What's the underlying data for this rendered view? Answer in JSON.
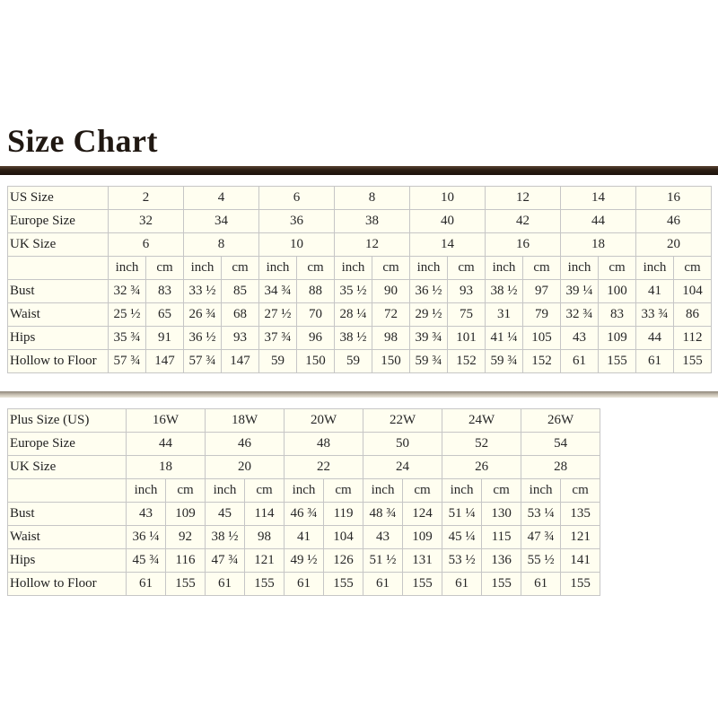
{
  "page": {
    "title": "Size Chart"
  },
  "colors": {
    "title_text": "#201812",
    "title_bar_dark_brown": "#2e2015",
    "table_divider_taupe": "#c9c2b4",
    "cell_background_ivory": "#fffef0",
    "cell_border": "#c6c6c6",
    "text": "#262626"
  },
  "chart_data": [
    {
      "type": "table",
      "name": "standard-size-chart",
      "title": "Standard US sizes",
      "unit_header": [
        "inch",
        "cm"
      ],
      "size_rows": [
        {
          "label": "US Size",
          "values": [
            "2",
            "4",
            "6",
            "8",
            "10",
            "12",
            "14",
            "16"
          ]
        },
        {
          "label": "Europe Size",
          "values": [
            "32",
            "34",
            "36",
            "38",
            "40",
            "42",
            "44",
            "46"
          ]
        },
        {
          "label": "UK Size",
          "values": [
            "6",
            "8",
            "10",
            "12",
            "14",
            "16",
            "18",
            "20"
          ]
        }
      ],
      "measure_rows": [
        {
          "label": "Bust",
          "values": [
            "32 ¾",
            "83",
            "33 ½",
            "85",
            "34 ¾",
            "88",
            "35 ½",
            "90",
            "36 ½",
            "93",
            "38 ½",
            "97",
            "39 ¼",
            "100",
            "41",
            "104"
          ]
        },
        {
          "label": "Waist",
          "values": [
            "25 ½",
            "65",
            "26 ¾",
            "68",
            "27 ½",
            "70",
            "28 ¼",
            "72",
            "29 ½",
            "75",
            "31",
            "79",
            "32 ¾",
            "83",
            "33 ¾",
            "86"
          ]
        },
        {
          "label": "Hips",
          "values": [
            "35 ¾",
            "91",
            "36 ½",
            "93",
            "37 ¾",
            "96",
            "38 ½",
            "98",
            "39 ¾",
            "101",
            "41 ¼",
            "105",
            "43",
            "109",
            "44",
            "112"
          ]
        },
        {
          "label": "Hollow to Floor",
          "values": [
            "57 ¾",
            "147",
            "57 ¾",
            "147",
            "59",
            "150",
            "59",
            "150",
            "59 ¾",
            "152",
            "59 ¾",
            "152",
            "61",
            "155",
            "61",
            "155"
          ]
        }
      ]
    },
    {
      "type": "table",
      "name": "plus-size-chart",
      "title": "Plus US sizes",
      "unit_header": [
        "inch",
        "cm"
      ],
      "size_rows": [
        {
          "label": "Plus Size (US)",
          "values": [
            "16W",
            "18W",
            "20W",
            "22W",
            "24W",
            "26W"
          ]
        },
        {
          "label": "Europe Size",
          "values": [
            "44",
            "46",
            "48",
            "50",
            "52",
            "54"
          ]
        },
        {
          "label": "UK Size",
          "values": [
            "18",
            "20",
            "22",
            "24",
            "26",
            "28"
          ]
        }
      ],
      "measure_rows": [
        {
          "label": "Bust",
          "values": [
            "43",
            "109",
            "45",
            "114",
            "46 ¾",
            "119",
            "48 ¾",
            "124",
            "51 ¼",
            "130",
            "53 ¼",
            "135"
          ]
        },
        {
          "label": "Waist",
          "values": [
            "36 ¼",
            "92",
            "38 ½",
            "98",
            "41",
            "104",
            "43",
            "109",
            "45 ¼",
            "115",
            "47 ¾",
            "121"
          ]
        },
        {
          "label": "Hips",
          "values": [
            "45 ¾",
            "116",
            "47 ¾",
            "121",
            "49 ½",
            "126",
            "51 ½",
            "131",
            "53 ½",
            "136",
            "55 ½",
            "141"
          ]
        },
        {
          "label": "Hollow to Floor",
          "values": [
            "61",
            "155",
            "61",
            "155",
            "61",
            "155",
            "61",
            "155",
            "61",
            "155",
            "61",
            "155"
          ]
        }
      ]
    }
  ]
}
